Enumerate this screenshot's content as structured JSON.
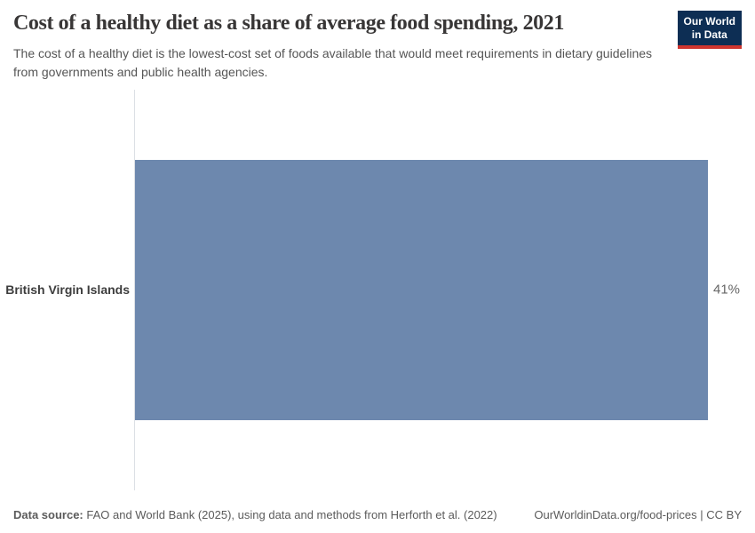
{
  "header": {
    "title": "Cost of a healthy diet as a share of average food spending, 2021",
    "subtitle": "The cost of a healthy diet is the lowest-cost set of foods available that would meet requirements in dietary guidelines from governments and public health agencies.",
    "logo": {
      "line1": "Our World",
      "line2": "in Data"
    }
  },
  "chart_data": {
    "type": "bar",
    "orientation": "horizontal",
    "title": "Cost of a healthy diet as a share of average food spending, 2021",
    "categories": [
      "British Virgin Islands"
    ],
    "values": [
      41
    ],
    "value_labels": [
      "41%"
    ],
    "unit": "%",
    "xlim": [
      0,
      41
    ],
    "grid": false,
    "legend": false,
    "bar_color": "#6d88ae"
  },
  "footer": {
    "source_label": "Data source:",
    "source_text": " FAO and World Bank (2025), using data and methods from Herforth et al. (2022)",
    "link_text": "OurWorldinData.org/food-prices",
    "separator": " | ",
    "license_text": "CC BY"
  },
  "colors": {
    "bar": "#6d88ae",
    "axis_line": "#dce0e5",
    "logo_background": "#0d2e54",
    "logo_accent": "#cf352e",
    "title_text": "#383636",
    "subtitle_text": "#555555",
    "value_text": "#666666"
  }
}
